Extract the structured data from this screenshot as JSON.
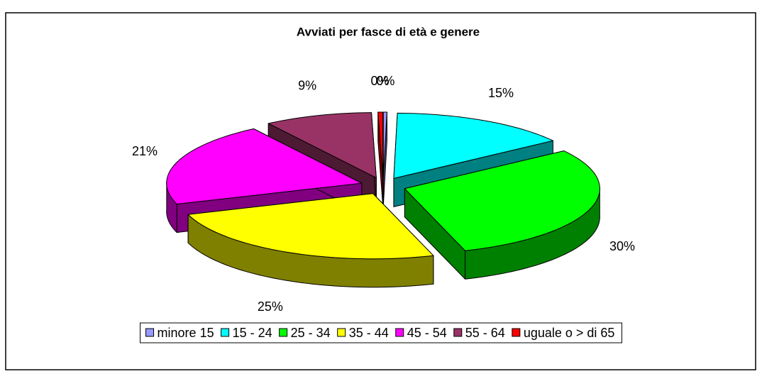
{
  "chart_data": {
    "type": "pie3d",
    "title": "Avviati per fasce di età e genere",
    "categories": [
      "minore 15",
      "15 - 24",
      "25 - 34",
      "35 - 44",
      "45 - 54",
      "55 - 64",
      "uguale o > di 65"
    ],
    "values": [
      0.3,
      15,
      30,
      25,
      21,
      9,
      0.4
    ],
    "value_labels": [
      "0%",
      "15%",
      "30%",
      "25%",
      "21%",
      "9%",
      "0%"
    ],
    "colors": [
      "#9999ff",
      "#00ffff",
      "#00ff00",
      "#ffff00",
      "#ff00ff",
      "#993366",
      "#ff0000"
    ],
    "legend": "bottom"
  }
}
